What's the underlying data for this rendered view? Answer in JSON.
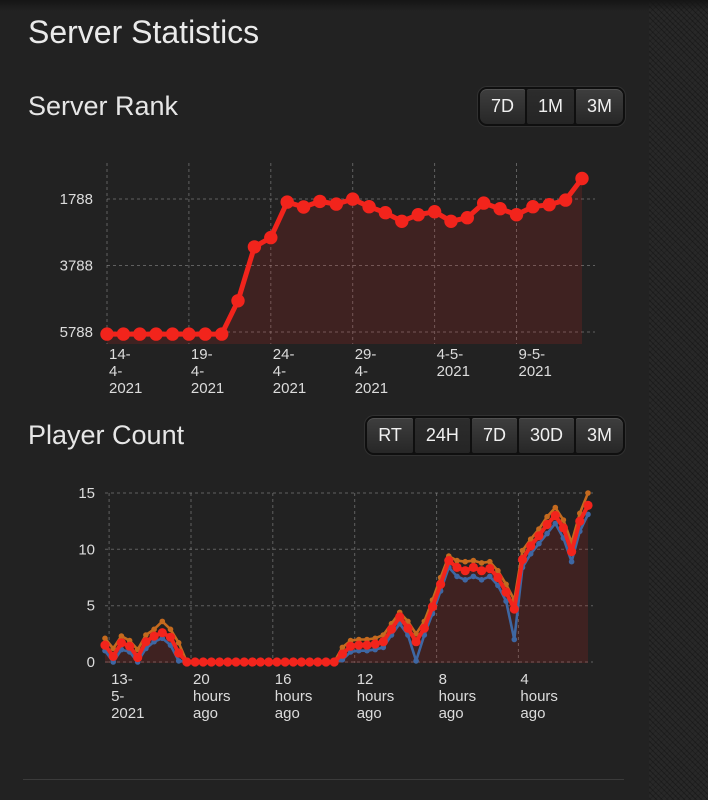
{
  "page": {
    "title": "Server Statistics"
  },
  "colors": {
    "background": "#222222",
    "accent_red": "#f2241c",
    "orange_max": "#c56a1e",
    "blue_min": "#3e67a3",
    "grid_line": "#939393",
    "area_fill": "rgba(242,36,28,0.14)",
    "heading_text": "#e6e6e6",
    "axis_text": "#dcdcdc",
    "divider": "#3b3b3b"
  },
  "rank_section": {
    "heading": "Server Rank",
    "buttons": [
      {
        "label": "7D",
        "active": false
      },
      {
        "label": "1M",
        "active": true
      },
      {
        "label": "3M",
        "active": false
      }
    ]
  },
  "player_section": {
    "heading": "Player Count",
    "buttons": [
      {
        "label": "RT",
        "active": false
      },
      {
        "label": "24H",
        "active": true
      },
      {
        "label": "7D",
        "active": false
      },
      {
        "label": "30D",
        "active": false
      },
      {
        "label": "3M",
        "active": false
      }
    ]
  },
  "chart_data": [
    {
      "id": "rank",
      "type": "line",
      "title": "Server Rank",
      "grid": "dashed",
      "y_axis_inverted": true,
      "y_ticks": [
        1788,
        3788,
        5788
      ],
      "y_range": [
        700,
        6150
      ],
      "x_tick_positions": [
        0,
        5,
        10,
        15,
        20,
        25
      ],
      "x_tick_labels": [
        [
          "14-",
          "4-",
          "2021"
        ],
        [
          "19-",
          "4-",
          "2021"
        ],
        [
          "24-",
          "4-",
          "2021"
        ],
        [
          "29-",
          "4-",
          "2021"
        ],
        [
          "4-5-",
          "2021"
        ],
        [
          "9-5-",
          "2021"
        ]
      ],
      "series": [
        {
          "name": "rank",
          "color": "#f2241c",
          "line_width": 5,
          "dot_radius": 6.7,
          "fill": true,
          "values": [
            5850,
            5850,
            5850,
            5850,
            5850,
            5850,
            5850,
            5850,
            4850,
            3230,
            2950,
            1880,
            2030,
            1860,
            1940,
            1790,
            2020,
            2200,
            2460,
            2260,
            2170,
            2460,
            2350,
            1910,
            2080,
            2260,
            2020,
            1960,
            1820,
            1170
          ]
        }
      ]
    },
    {
      "id": "players",
      "type": "line",
      "title": "Player Count",
      "grid": "dashed",
      "y_ticks": [
        0,
        5,
        10,
        15
      ],
      "y_range": [
        0,
        16
      ],
      "x_tick_positions": [
        0,
        10,
        20,
        30,
        40,
        50
      ],
      "x_tick_labels": [
        [
          "13-",
          "5-",
          "2021"
        ],
        [
          "20",
          "hours",
          "ago"
        ],
        [
          "16",
          "hours",
          "ago"
        ],
        [
          "12",
          "hours",
          "ago"
        ],
        [
          "8",
          "hours",
          "ago"
        ],
        [
          "4",
          "hours",
          "ago"
        ]
      ],
      "series": [
        {
          "name": "min-players",
          "color": "#3e67a3",
          "line_width": 2.6,
          "dot_radius": 2.8,
          "fill": false,
          "values": [
            1.0,
            0.0,
            1.1,
            0.9,
            0.0,
            1.2,
            1.8,
            2.1,
            1.5,
            0.1,
            0,
            0,
            0,
            0,
            0,
            0,
            0,
            0,
            0,
            0,
            0,
            0,
            0,
            0,
            0,
            0,
            0,
            0,
            0,
            0.2,
            0.9,
            1.0,
            1.0,
            1.1,
            1.3,
            2.4,
            3.4,
            2.4,
            0.1,
            2.4,
            4.3,
            6.3,
            8.4,
            7.6,
            7.3,
            7.6,
            7.3,
            7.6,
            6.8,
            5.4,
            2.0,
            8.4,
            9.6,
            10.5,
            11.4,
            12.3,
            11.0,
            8.9,
            11.6,
            13.1
          ]
        },
        {
          "name": "max-players",
          "color": "#c56a1e",
          "line_width": 2.6,
          "dot_radius": 2.8,
          "fill": false,
          "values": [
            2.1,
            1.2,
            2.3,
            1.9,
            1.1,
            2.4,
            2.9,
            3.6,
            2.9,
            1.7,
            0,
            0,
            0,
            0,
            0,
            0,
            0,
            0,
            0,
            0,
            0,
            0,
            0,
            0,
            0,
            0,
            0,
            0,
            0,
            1.3,
            1.9,
            2.0,
            2.0,
            2.1,
            2.4,
            3.4,
            4.4,
            3.6,
            2.5,
            3.6,
            5.5,
            7.5,
            9.4,
            9.0,
            8.9,
            9.0,
            8.8,
            8.9,
            8.1,
            6.9,
            5.5,
            9.9,
            10.9,
            11.8,
            12.9,
            13.7,
            12.6,
            10.6,
            13.2,
            15.0
          ]
        },
        {
          "name": "players",
          "color": "#f2241c",
          "line_width": 4,
          "dot_radius": 4.6,
          "fill": true,
          "values": [
            1.5,
            0.5,
            1.7,
            1.4,
            0.4,
            1.8,
            2.3,
            2.6,
            2.2,
            0.8,
            0,
            0,
            0,
            0,
            0,
            0,
            0,
            0,
            0,
            0,
            0,
            0,
            0,
            0,
            0,
            0,
            0,
            0,
            0,
            0.7,
            1.4,
            1.5,
            1.5,
            1.6,
            1.8,
            2.9,
            4.0,
            3.0,
            1.8,
            3.0,
            4.9,
            6.9,
            9.0,
            8.4,
            8.1,
            8.4,
            8.1,
            8.3,
            7.5,
            6.2,
            4.7,
            9.1,
            10.3,
            11.2,
            12.2,
            13.0,
            11.9,
            9.8,
            12.5,
            13.9
          ]
        }
      ]
    }
  ]
}
